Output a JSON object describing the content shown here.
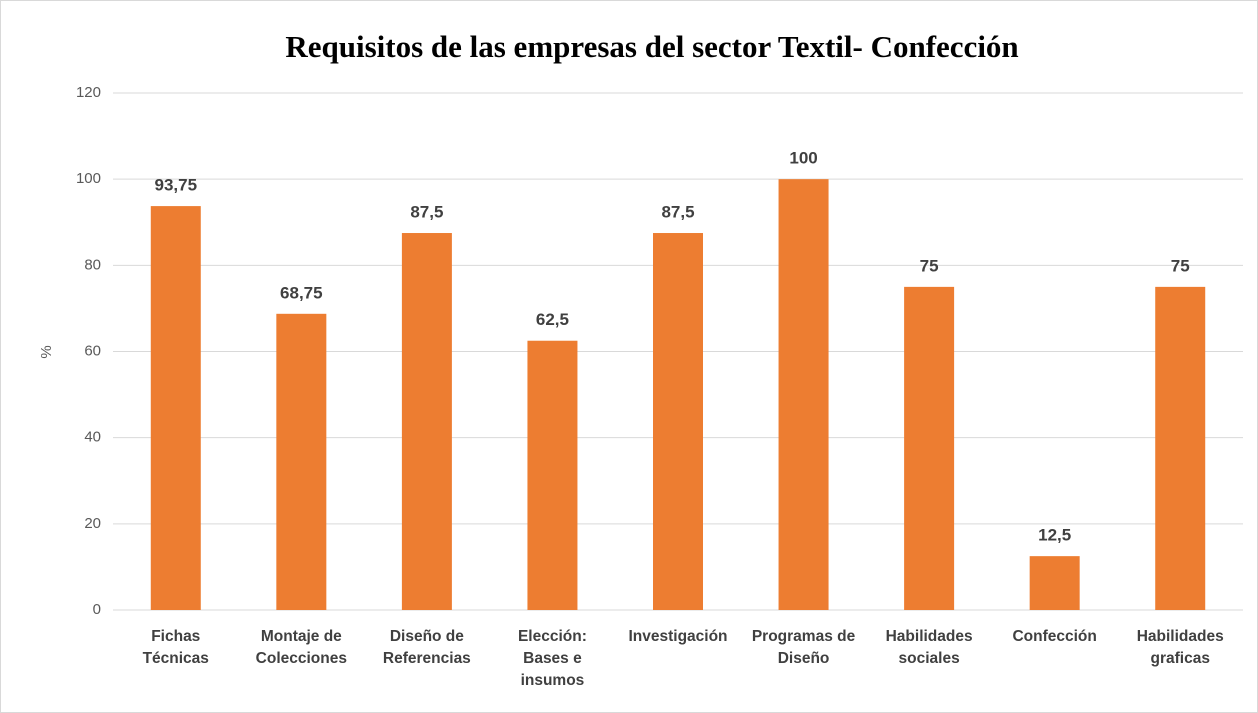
{
  "chart_data": {
    "type": "bar",
    "title": "Requisitos  de las empresas del sector Textil-  Confección",
    "y_label": "%",
    "categories": [
      "Fichas Técnicas",
      "Montaje de Colecciones",
      "Diseño de Referencias",
      "Elección: Bases e insumos",
      "Investigación",
      "Programas de Diseño",
      "Habilidades sociales",
      "Confección",
      "Habilidades graficas"
    ],
    "values": [
      93.75,
      68.75,
      87.5,
      62.5,
      87.5,
      100,
      75,
      12.5,
      75
    ],
    "value_labels": [
      "93,75",
      "68,75",
      "87,5",
      "62,5",
      "87,5",
      "100",
      "75",
      "12,5",
      "75"
    ],
    "color": "#ed7d31",
    "ylim": [
      0,
      120
    ],
    "yticks": [
      0,
      20,
      40,
      60,
      80,
      100,
      120
    ],
    "grid": true
  }
}
